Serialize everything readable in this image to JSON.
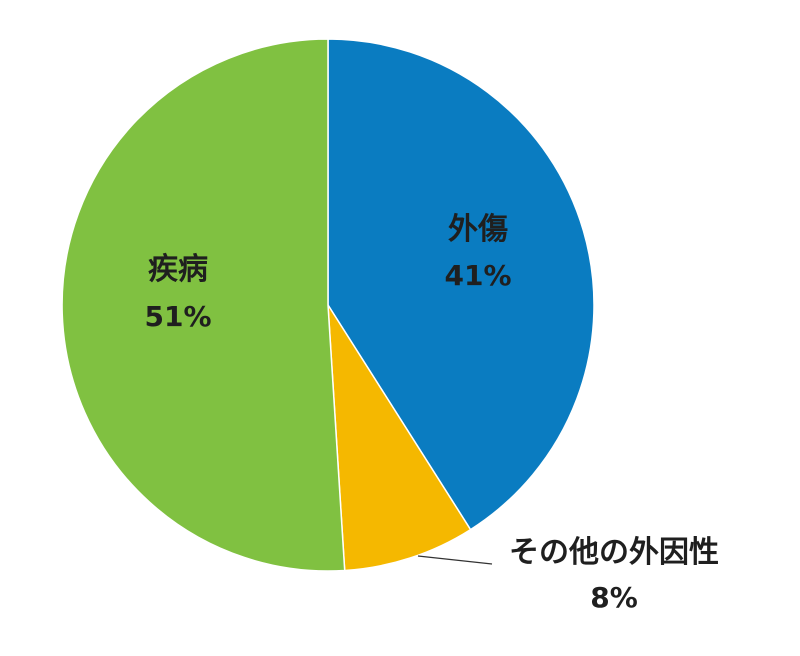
{
  "chart_data": {
    "type": "pie",
    "title": "",
    "slices": [
      {
        "label": "外傷",
        "value": 41,
        "value_label": "41%",
        "color": "#0A7CC1"
      },
      {
        "label": "その他の外因性",
        "value": 8,
        "value_label": "8%",
        "color": "#F5B800"
      },
      {
        "label": "疾病",
        "value": 51,
        "value_label": "51%",
        "color": "#80C141"
      }
    ],
    "start_angle": "12 o'clock",
    "direction": "clockwise",
    "legend": "none",
    "label_placement": {
      "外傷": "inside",
      "その他の外因性": "outside-bottom-right",
      "疾病": "inside"
    }
  }
}
